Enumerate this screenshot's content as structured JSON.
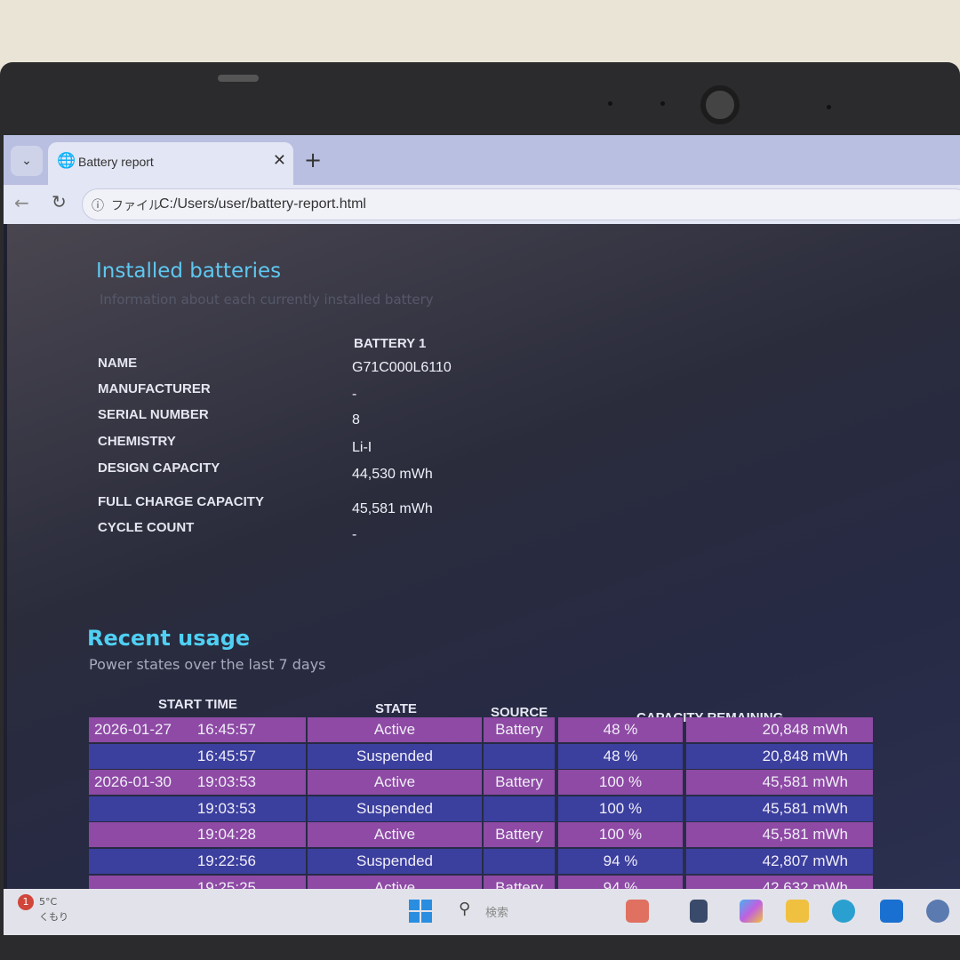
{
  "browser": {
    "tab_title": "Battery report",
    "tab_icon": "globe-icon",
    "address_scheme_label": "ファイル",
    "address_url": "C:/Users/user/battery-report.html"
  },
  "installed": {
    "title": "Installed batteries",
    "subtitle": "Information about each currently installed battery",
    "column_header": "BATTERY 1",
    "rows": [
      {
        "label": "NAME",
        "value": "G71C000L6110"
      },
      {
        "label": "MANUFACTURER",
        "value": "-"
      },
      {
        "label": "SERIAL NUMBER",
        "value": "8"
      },
      {
        "label": "CHEMISTRY",
        "value": "Li-I"
      },
      {
        "label": "DESIGN CAPACITY",
        "value": "44,530 mWh"
      },
      {
        "label": "FULL CHARGE CAPACITY",
        "value": "45,581 mWh"
      },
      {
        "label": "CYCLE COUNT",
        "value": "-"
      }
    ]
  },
  "recent": {
    "title": "Recent usage",
    "subtitle": "Power states over the last 7 days",
    "headers": {
      "start_time": "START TIME",
      "state": "STATE",
      "source": "SOURCE",
      "capacity": "CAPACITY REMAINING"
    },
    "rows": [
      {
        "date": "2026-01-27",
        "time": "16:45:57",
        "state": "Active",
        "source": "Battery",
        "pct": "48 %",
        "mwh": "20,848 mWh"
      },
      {
        "date": "",
        "time": "16:45:57",
        "state": "Suspended",
        "source": "",
        "pct": "48 %",
        "mwh": "20,848 mWh"
      },
      {
        "date": "2026-01-30",
        "time": "19:03:53",
        "state": "Active",
        "source": "Battery",
        "pct": "100 %",
        "mwh": "45,581 mWh"
      },
      {
        "date": "",
        "time": "19:03:53",
        "state": "Suspended",
        "source": "",
        "pct": "100 %",
        "mwh": "45,581 mWh"
      },
      {
        "date": "",
        "time": "19:04:28",
        "state": "Active",
        "source": "Battery",
        "pct": "100 %",
        "mwh": "45,581 mWh"
      },
      {
        "date": "",
        "time": "19:22:56",
        "state": "Suspended",
        "source": "",
        "pct": "94 %",
        "mwh": "42,807 mWh"
      },
      {
        "date": "",
        "time": "19:25:25",
        "state": "Active",
        "source": "Battery",
        "pct": "94 %",
        "mwh": "42,632 mWh"
      }
    ],
    "colors": {
      "active_row": "#8e4aa4",
      "suspended_row": "#3b3f9e"
    }
  },
  "taskbar": {
    "weather_temp": "5°C",
    "weather_text": "くもり",
    "notification_count": "1",
    "search_placeholder": "検索"
  }
}
